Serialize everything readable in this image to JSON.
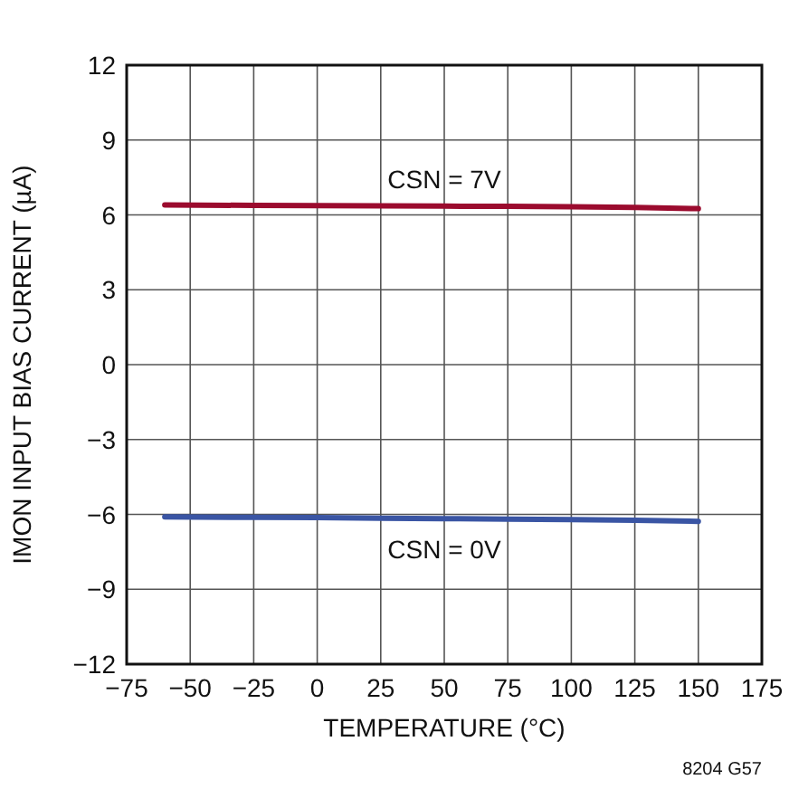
{
  "chart_data": {
    "type": "line",
    "xlabel": "TEMPERATURE (°C)",
    "ylabel": "IMON INPUT BIAS CURRENT (µA)",
    "x": [
      -60,
      -25,
      0,
      25,
      50,
      75,
      100,
      125,
      150
    ],
    "series": [
      {
        "name": "CSN = 7V",
        "color": "#9b0b2e",
        "values": [
          6.4,
          6.38,
          6.37,
          6.36,
          6.35,
          6.34,
          6.33,
          6.3,
          6.25
        ]
      },
      {
        "name": "CSN = 0V",
        "color": "#3a55a4",
        "values": [
          -6.1,
          -6.12,
          -6.13,
          -6.15,
          -6.17,
          -6.19,
          -6.21,
          -6.24,
          -6.28
        ]
      }
    ],
    "xlim": [
      -75,
      175
    ],
    "xticks": [
      -75,
      -50,
      -25,
      0,
      25,
      50,
      75,
      100,
      125,
      150,
      175
    ],
    "ylim": [
      -12,
      12
    ],
    "yticks": [
      -12,
      -9,
      -6,
      -3,
      0,
      3,
      6,
      9,
      12
    ],
    "grid": true,
    "line_style": "solid",
    "annotations": [
      "8204 G57"
    ]
  }
}
